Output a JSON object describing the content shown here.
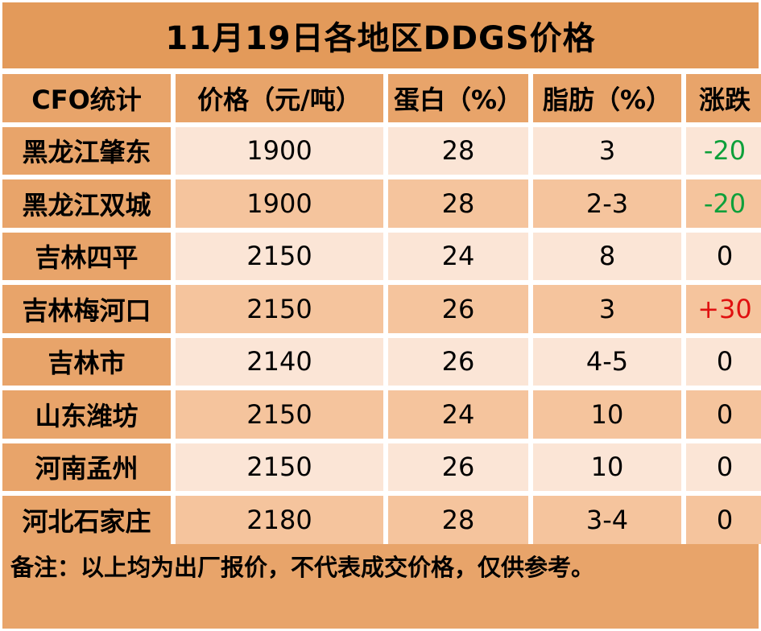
{
  "title": "11月19日各地区DDGS价格",
  "table": {
    "headers": [
      "CFO统计",
      "价格（元/吨）",
      "蛋白（%）",
      "脂肪（%）",
      "涨跌"
    ],
    "rows": [
      {
        "region": "黑龙江肇东",
        "price": "1900",
        "protein": "28",
        "fat": "3",
        "change": "-20",
        "change_type": "neg"
      },
      {
        "region": "黑龙江双城",
        "price": "1900",
        "protein": "28",
        "fat": "2-3",
        "change": "-20",
        "change_type": "neg"
      },
      {
        "region": "吉林四平",
        "price": "2150",
        "protein": "24",
        "fat": "8",
        "change": "0",
        "change_type": "flat"
      },
      {
        "region": "吉林梅河口",
        "price": "2150",
        "protein": "26",
        "fat": "3",
        "change": "+30",
        "change_type": "pos"
      },
      {
        "region": "吉林市",
        "price": "2140",
        "protein": "26",
        "fat": "4-5",
        "change": "0",
        "change_type": "flat"
      },
      {
        "region": "山东潍坊",
        "price": "2150",
        "protein": "24",
        "fat": "10",
        "change": "0",
        "change_type": "flat"
      },
      {
        "region": "河南孟州",
        "price": "2150",
        "protein": "26",
        "fat": "10",
        "change": "0",
        "change_type": "flat"
      },
      {
        "region": "河北石家庄",
        "price": "2180",
        "protein": "28",
        "fat": "3-4",
        "change": "0",
        "change_type": "flat"
      }
    ]
  },
  "note": "备注：以上均为出厂报价，不代表成交价格，仅供参考。",
  "colors": {
    "header_bg": "#e8a46a",
    "title_bg": "#e39a5a",
    "row_light": "#fbe5d6",
    "row_mid": "#f5c49d",
    "change_negative": "#0ea03a",
    "change_positive": "#e01010"
  }
}
